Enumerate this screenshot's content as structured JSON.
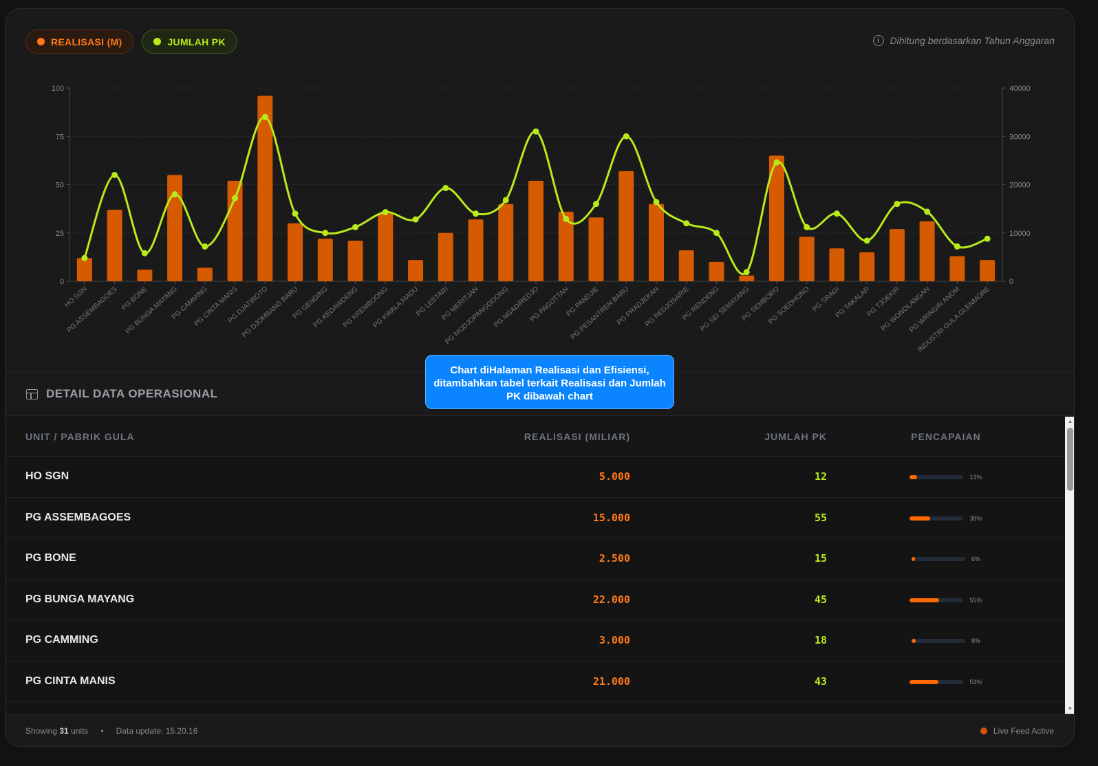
{
  "legend": {
    "realisasi_label": "REALISASI (M)",
    "pk_label": "JUMLAH PK"
  },
  "note": "Dihitung berdasarkan Tahun Anggaran",
  "callout": "Chart diHalaman Realisasi dan Efisiensi, ditambahkan tabel terkait Realisasi dan Jumlah PK dibawah chart",
  "section_title": "DETAIL DATA OPERASIONAL",
  "table": {
    "headers": [
      "UNIT / PABRIK GULA",
      "REALISASI (MILIAR)",
      "JUMLAH PK",
      "PENCAPAIAN"
    ],
    "rows": [
      {
        "unit": "HO SGN",
        "realisasi": "5.000",
        "pk": "12",
        "pct": "13%",
        "pct_value": 13
      },
      {
        "unit": "PG ASSEMBAGOES",
        "realisasi": "15.000",
        "pk": "55",
        "pct": "38%",
        "pct_value": 38
      },
      {
        "unit": "PG BONE",
        "realisasi": "2.500",
        "pk": "15",
        "pct": "6%",
        "pct_value": 6
      },
      {
        "unit": "PG BUNGA MAYANG",
        "realisasi": "22.000",
        "pk": "45",
        "pct": "55%",
        "pct_value": 55
      },
      {
        "unit": "PG CAMMING",
        "realisasi": "3.000",
        "pk": "18",
        "pct": "8%",
        "pct_value": 8
      },
      {
        "unit": "PG CINTA MANIS",
        "realisasi": "21.000",
        "pk": "43",
        "pct": "53%",
        "pct_value": 53
      }
    ]
  },
  "footer": {
    "showing_prefix": "Showing",
    "units_count": "31",
    "units_suffix": "units",
    "bullet": "•",
    "update": "Data update: 15.20.16",
    "live": "Live Feed Active"
  },
  "colors": {
    "realisasi": "#d55a00",
    "pk": "#b8ea1a"
  },
  "chart_data": {
    "type": "bar",
    "categories": [
      "HO SGN",
      "PG ASSEMBAGOES",
      "PG BONE",
      "PG BUNGA MAYANG",
      "PG CAMMING",
      "PG CINTA MANIS",
      "PG DJATIROTO",
      "PG DJOMBANG BARU",
      "PG GENDING",
      "PG KEDAWOENG",
      "PG KREMBOONG",
      "PG KWALA MADU",
      "PG LESTARI",
      "PG MERITJAN",
      "PG MODJOPANGGOONG",
      "PG NGADIREDJO",
      "PG PAGOTTAN",
      "PG PANDJIE",
      "PG PESANTREN BARU",
      "PG PRADJEKAN",
      "PG REDJOSARIE",
      "PG RENDENG",
      "PG SEI SEMAYANG",
      "PG SEMBORO",
      "PG SOEDHONO",
      "PG SRAGI",
      "PG TAKALAR",
      "PG TJOEKIR",
      "PG WONOLANGAN",
      "PG WRINGIN ANOM",
      "INDUSTRI GULA GLENMORE"
    ],
    "series": [
      {
        "values": [
          12,
          37,
          6,
          55,
          7,
          52,
          96,
          30,
          22,
          21,
          35,
          11,
          25,
          32,
          40,
          52,
          36,
          33,
          57,
          40,
          16,
          10,
          3,
          65,
          23,
          17,
          15,
          27,
          31,
          13,
          11
        ],
        "axis": "left",
        "kind": "bar"
      },
      {
        "values": [
          4800,
          22000,
          5800,
          18000,
          7200,
          17200,
          34000,
          14000,
          10000,
          11200,
          14300,
          12800,
          19300,
          14000,
          16800,
          31000,
          12900,
          16000,
          30000,
          16400,
          12000,
          10000,
          1900,
          24600,
          11200,
          14000,
          8400,
          16000,
          14400,
          7200,
          8800
        ],
        "axis": "right",
        "kind": "line"
      }
    ],
    "y_left": {
      "ticks": [
        0,
        25,
        50,
        75,
        100
      ],
      "range": [
        0,
        100
      ]
    },
    "y_right": {
      "ticks": [
        0,
        10000,
        20000,
        30000,
        40000
      ],
      "range": [
        0,
        40000
      ]
    }
  }
}
